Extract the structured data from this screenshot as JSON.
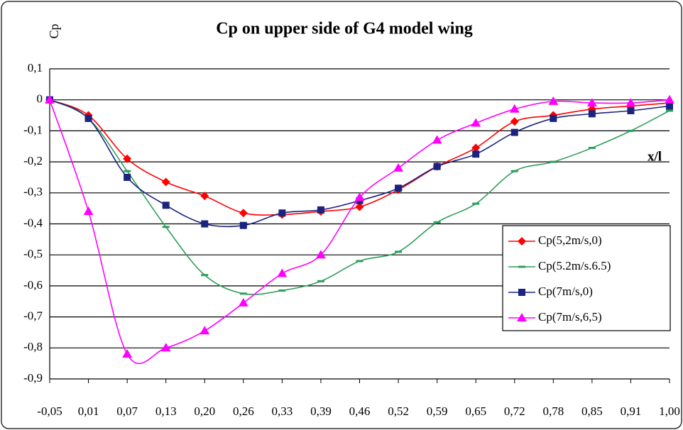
{
  "chart_data": {
    "type": "line",
    "title": "Cp on upper side of G4 model wing",
    "y_label": "Cp",
    "x_label": "x/l",
    "categories": [
      "-0,05",
      "0,01",
      "0,07",
      "0,13",
      "0,20",
      "0,26",
      "0,33",
      "0,39",
      "0,46",
      "0,52",
      "0,59",
      "0,65",
      "0,72",
      "0,78",
      "0,85",
      "0,91",
      "1,00"
    ],
    "ylim": [
      -0.9,
      0.1
    ],
    "yticks": [
      {
        "value": 0.1,
        "label": "0,1"
      },
      0,
      {
        "value": -0.1,
        "label": "-0,1"
      },
      {
        "value": -0.2,
        "label": "-0,2"
      },
      {
        "value": -0.3,
        "label": "-0,3"
      },
      {
        "value": -0.4,
        "label": "-0,4"
      },
      {
        "value": -0.5,
        "label": "-0,5"
      },
      {
        "value": -0.6,
        "label": "-0,6"
      },
      {
        "value": -0.7,
        "label": "-0,7"
      },
      {
        "value": -0.8,
        "label": "-0,8"
      },
      {
        "value": -0.9,
        "label": "-0,9"
      }
    ],
    "grid": true,
    "legend": "right",
    "series": [
      {
        "name": "Cp(5,2m/s,0)",
        "color": "#ff0000",
        "marker": "diamond",
        "values": [
          0,
          -0.05,
          -0.19,
          -0.265,
          -0.31,
          -0.365,
          -0.37,
          -0.36,
          -0.345,
          -0.29,
          -0.215,
          -0.155,
          -0.07,
          -0.05,
          -0.03,
          -0.02,
          -0.01
        ]
      },
      {
        "name": "Cp(5.2m/s.6.5)",
        "color": "#2e9e5b",
        "marker": "dash",
        "values": [
          0,
          -0.06,
          -0.23,
          -0.41,
          -0.565,
          -0.625,
          -0.615,
          -0.585,
          -0.52,
          -0.49,
          -0.395,
          -0.335,
          -0.23,
          -0.2,
          -0.155,
          -0.1,
          -0.035
        ]
      },
      {
        "name": "Cp(7m/s,0)",
        "color": "#1a237e",
        "marker": "square",
        "values": [
          0,
          -0.06,
          -0.25,
          -0.34,
          -0.4,
          -0.405,
          -0.365,
          -0.355,
          -0.325,
          -0.285,
          -0.215,
          -0.175,
          -0.105,
          -0.06,
          -0.045,
          -0.035,
          -0.02
        ]
      },
      {
        "name": "Cp(7m/s,6,5)",
        "color": "#ff00ff",
        "marker": "triangle",
        "values": [
          0,
          -0.36,
          -0.82,
          -0.8,
          -0.745,
          -0.655,
          -0.56,
          -0.5,
          -0.315,
          -0.22,
          -0.13,
          -0.075,
          -0.03,
          -0.005,
          -0.01,
          -0.01,
          0
        ]
      }
    ]
  }
}
